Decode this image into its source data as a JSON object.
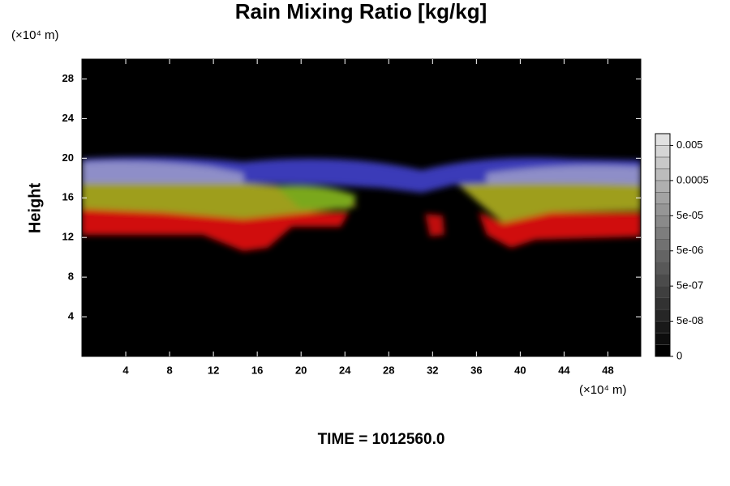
{
  "chart_data": {
    "type": "contour",
    "title": "Rain Mixing Ratio [kg/kg]",
    "y_label": "Height",
    "y_unit": "(×10⁴ m)",
    "x_unit": "(×10⁴ m)",
    "time_label": "TIME = 1012560.0",
    "xlim": [
      0,
      51
    ],
    "ylim": [
      0,
      30
    ],
    "xticks": [
      4,
      8,
      12,
      16,
      20,
      24,
      28,
      32,
      36,
      40,
      44,
      48
    ],
    "yticks": [
      4,
      8,
      12,
      16,
      20,
      24,
      28
    ],
    "colorbar_ticks": [
      0,
      {
        "value": 5e-08,
        "label": "5e-08"
      },
      {
        "value": 5e-07,
        "label": "5e-07"
      },
      {
        "value": 5e-06,
        "label": "5e-06"
      },
      {
        "value": 5e-05,
        "label": "5e-05"
      },
      0.0005,
      0.005
    ]
  }
}
